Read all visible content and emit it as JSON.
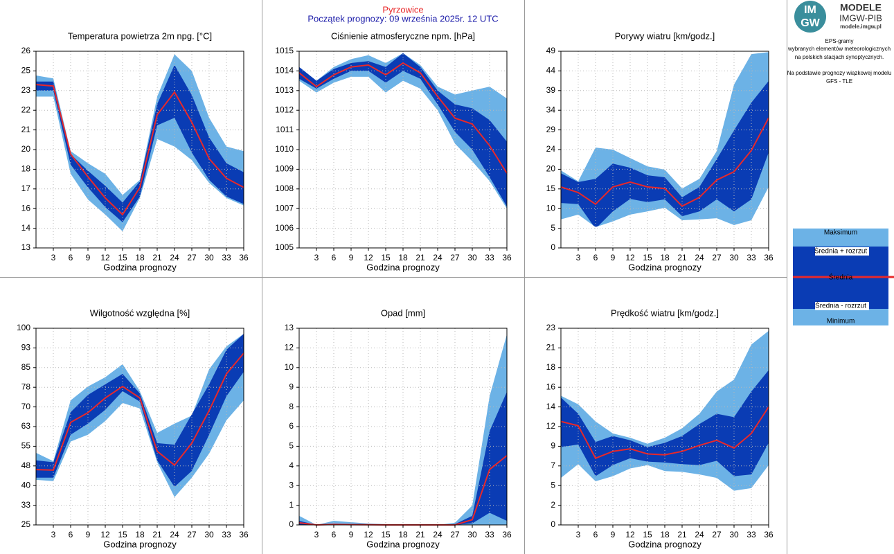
{
  "header": {
    "station": "Pyrzowice",
    "subtitle": "Początek prognozy: 09 września 2025r. 12 UTC"
  },
  "logo": {
    "mark": [
      "IM",
      "GW"
    ],
    "name": "MODELE",
    "org": "IMGW-PIB",
    "url": "modele.imgw.pl"
  },
  "info": [
    "EPS-gramy",
    "wybranych elementów meteorologicznych",
    "na polskich stacjach  synoptycznych.",
    "Na podstawie prognozy wiązkowej modelu",
    "GFS - TLE"
  ],
  "chart_data": [
    {
      "type": "band",
      "title": "Temperatura powietrza 2m npg. [°C]",
      "x_label": "Godzina prognozy",
      "x": [
        0,
        3,
        6,
        9,
        12,
        15,
        18,
        21,
        24,
        27,
        30,
        33,
        36
      ],
      "xlim": [
        0,
        36
      ],
      "xticks": [
        3,
        6,
        9,
        12,
        15,
        18,
        21,
        24,
        27,
        30,
        33,
        36
      ],
      "ylim": [
        13,
        26
      ],
      "yticks": [
        13,
        {
          "value": 14.3,
          "label": "14"
        },
        {
          "value": 15.6,
          "label": "16"
        },
        {
          "value": 16.9,
          "label": "17"
        },
        {
          "value": 18.2,
          "label": "18"
        },
        {
          "value": 19.5,
          "label": "20"
        },
        {
          "value": 20.8,
          "label": "21"
        },
        {
          "value": 22.1,
          "label": "22"
        },
        {
          "value": 23.4,
          "label": "23"
        },
        {
          "value": 24.7,
          "label": "25"
        },
        26
      ],
      "grid": true,
      "series": [
        {
          "name": "Maksimum",
          "color": "#6cb2e6",
          "values": [
            24.4,
            24.2,
            19.4,
            18.6,
            17.9,
            16.5,
            17.5,
            23.0,
            25.8,
            24.7,
            21.6,
            19.7,
            19.4
          ]
        },
        {
          "name": "Średnia + rozrzut",
          "color": "#0a3cb4",
          "values": [
            24.0,
            24.0,
            19.2,
            18.1,
            17.1,
            16.0,
            17.4,
            22.5,
            25.1,
            23.1,
            20.3,
            18.6,
            18.0
          ]
        },
        {
          "name": "Średnia",
          "color": "#e8282a",
          "values": [
            23.8,
            23.7,
            19.2,
            17.7,
            16.3,
            15.2,
            17.0,
            21.8,
            23.3,
            21.3,
            18.9,
            17.6,
            17.0
          ]
        },
        {
          "name": "Średnia - rozrzut",
          "color": "#0a3cb4",
          "values": [
            23.4,
            23.4,
            18.5,
            17.0,
            15.7,
            14.7,
            16.4,
            21.1,
            21.6,
            19.3,
            17.5,
            16.4,
            15.9
          ]
        },
        {
          "name": "Minimum",
          "color": "#6cb2e6",
          "values": [
            23.0,
            23.0,
            17.9,
            16.2,
            15.2,
            14.1,
            16.3,
            20.2,
            19.7,
            18.8,
            17.3,
            16.3,
            15.8
          ]
        }
      ]
    },
    {
      "type": "band",
      "title": "Ciśnienie atmosferyczne npm. [hPa]",
      "x_label": "Godzina prognozy",
      "x": [
        0,
        3,
        6,
        9,
        12,
        15,
        18,
        21,
        24,
        27,
        30,
        33,
        36
      ],
      "xlim": [
        0,
        36
      ],
      "xticks": [
        3,
        6,
        9,
        12,
        15,
        18,
        21,
        24,
        27,
        30,
        33,
        36
      ],
      "ylim": [
        1005,
        1015
      ],
      "yticks": [
        1005,
        1006,
        1007,
        1008,
        1009,
        1010,
        1011,
        1012,
        1013,
        1014,
        1015
      ],
      "grid": true,
      "series": [
        {
          "name": "Maksimum",
          "color": "#6cb2e6",
          "values": [
            1014.2,
            1013.5,
            1014.2,
            1014.6,
            1014.8,
            1014.4,
            1014.9,
            1014.3,
            1013.2,
            1012.8,
            1013.0,
            1013.2,
            1012.6
          ]
        },
        {
          "name": "Średnia + rozrzut",
          "color": "#0a3cb4",
          "values": [
            1014.2,
            1013.5,
            1014.1,
            1014.4,
            1014.5,
            1014.2,
            1014.9,
            1014.2,
            1013.0,
            1012.3,
            1012.1,
            1011.5,
            1010.4
          ]
        },
        {
          "name": "Średnia",
          "color": "#e8282a",
          "values": [
            1013.9,
            1013.2,
            1013.8,
            1014.2,
            1014.3,
            1013.8,
            1014.4,
            1013.9,
            1012.7,
            1011.6,
            1011.3,
            1010.2,
            1008.8
          ]
        },
        {
          "name": "Średnia - rozrzut",
          "color": "#0a3cb4",
          "values": [
            1013.6,
            1013.1,
            1013.6,
            1014.0,
            1014.0,
            1013.4,
            1014.0,
            1013.6,
            1012.3,
            1010.9,
            1010.0,
            1008.6,
            1007.1
          ]
        },
        {
          "name": "Minimum",
          "color": "#6cb2e6",
          "values": [
            1013.5,
            1012.9,
            1013.4,
            1013.7,
            1013.7,
            1012.9,
            1013.5,
            1013.1,
            1012.0,
            1010.3,
            1009.4,
            1008.4,
            1007.0
          ]
        }
      ]
    },
    {
      "type": "band",
      "title": "Porywy wiatru [km/godz.]",
      "x_label": "Godzina prognozy",
      "x": [
        0,
        3,
        6,
        9,
        12,
        15,
        18,
        21,
        24,
        27,
        30,
        33,
        36
      ],
      "xlim": [
        0,
        36
      ],
      "xticks": [
        3,
        6,
        9,
        12,
        15,
        18,
        21,
        24,
        27,
        30,
        33,
        36
      ],
      "ylim": [
        0,
        49
      ],
      "yticks": [
        0,
        {
          "value": 4.9,
          "label": "5"
        },
        {
          "value": 9.8,
          "label": "10"
        },
        {
          "value": 14.7,
          "label": "15"
        },
        {
          "value": 19.6,
          "label": "20"
        },
        {
          "value": 24.5,
          "label": "24"
        },
        {
          "value": 29.4,
          "label": "29"
        },
        {
          "value": 34.3,
          "label": "34"
        },
        {
          "value": 39.2,
          "label": "39"
        },
        {
          "value": 44.1,
          "label": "44"
        },
        49
      ],
      "grid": true,
      "series": [
        {
          "name": "Maksimum",
          "color": "#6cb2e6",
          "values": [
            19.3,
            16.6,
            25.0,
            24.5,
            22.4,
            20.3,
            19.5,
            14.8,
            17.2,
            24.1,
            40.7,
            48.3,
            48.8
          ]
        },
        {
          "name": "Średnia + rozrzut",
          "color": "#0a3cb4",
          "values": [
            18.6,
            16.4,
            17.2,
            21.0,
            20.0,
            18.1,
            17.6,
            12.6,
            15.2,
            22.1,
            29.3,
            36.2,
            41.6
          ]
        },
        {
          "name": "Średnia",
          "color": "#e8282a",
          "values": [
            15.2,
            13.8,
            10.9,
            15.2,
            16.4,
            15.2,
            14.8,
            10.4,
            12.6,
            16.9,
            19.0,
            24.3,
            32.4
          ]
        },
        {
          "name": "Średnia - rozrzut",
          "color": "#0a3cb4",
          "values": [
            11.2,
            10.9,
            4.8,
            9.1,
            12.2,
            11.4,
            12.1,
            7.9,
            9.1,
            12.1,
            9.1,
            12.1,
            23.8
          ]
        },
        {
          "name": "Minimum",
          "color": "#6cb2e6",
          "values": [
            7.1,
            8.3,
            5.2,
            6.6,
            8.3,
            9.1,
            10.0,
            6.9,
            7.1,
            7.4,
            5.7,
            6.9,
            15.2
          ]
        }
      ]
    },
    {
      "type": "band",
      "title": "Wilgotność względna [%]",
      "x_label": "Godzina prognozy",
      "x": [
        0,
        3,
        6,
        9,
        12,
        15,
        18,
        21,
        24,
        27,
        30,
        33,
        36
      ],
      "xlim": [
        0,
        36
      ],
      "xticks": [
        3,
        6,
        9,
        12,
        15,
        18,
        21,
        24,
        27,
        30,
        33,
        36
      ],
      "ylim": [
        25,
        100
      ],
      "yticks": [
        25,
        {
          "value": 32.5,
          "label": "33"
        },
        40,
        {
          "value": 47.5,
          "label": "48"
        },
        55,
        {
          "value": 62.5,
          "label": "63"
        },
        70,
        {
          "value": 77.5,
          "label": "78"
        },
        85,
        {
          "value": 92.5,
          "label": "93"
        },
        100
      ],
      "grid": true,
      "series": [
        {
          "name": "Maksimum",
          "color": "#6cb2e6",
          "values": [
            52.5,
            49.3,
            72.5,
            77.8,
            81.3,
            86.3,
            76.0,
            60.1,
            63.6,
            66.7,
            84.4,
            93.1,
            97.9
          ]
        },
        {
          "name": "Średnia + rozrzut",
          "color": "#0a3cb4",
          "values": [
            49.6,
            48.9,
            68.0,
            74.6,
            78.6,
            82.6,
            75.1,
            56.2,
            55.6,
            67.2,
            78.6,
            91.8,
            97.9
          ]
        },
        {
          "name": "Średnia",
          "color": "#e8282a",
          "values": [
            46.1,
            45.9,
            64.1,
            67.8,
            73.4,
            77.8,
            73.4,
            53.1,
            47.8,
            56.2,
            68.6,
            82.6,
            90.5
          ]
        },
        {
          "name": "Średnia - rozrzut",
          "color": "#0a3cb4",
          "values": [
            43.0,
            43.0,
            59.4,
            63.6,
            68.9,
            76.0,
            72.0,
            49.6,
            39.5,
            45.6,
            59.4,
            74.1,
            83.4
          ]
        },
        {
          "name": "Minimum",
          "color": "#6cb2e6",
          "values": [
            42.2,
            41.7,
            56.8,
            59.4,
            64.6,
            71.5,
            69.4,
            48.9,
            35.6,
            43.0,
            52.2,
            64.9,
            72.5
          ]
        }
      ]
    },
    {
      "type": "band",
      "title": "Opad [mm]",
      "x_label": "Godzina prognozy",
      "x": [
        0,
        3,
        6,
        9,
        12,
        15,
        18,
        21,
        24,
        27,
        30,
        33,
        36
      ],
      "xlim": [
        0,
        36
      ],
      "xticks": [
        3,
        6,
        9,
        12,
        15,
        18,
        21,
        24,
        27,
        30,
        33,
        36
      ],
      "ylim": [
        0,
        13
      ],
      "yticks": [
        0,
        {
          "value": 1.3,
          "label": "1"
        },
        {
          "value": 2.6,
          "label": "3"
        },
        {
          "value": 3.9,
          "label": "4"
        },
        {
          "value": 5.2,
          "label": "5"
        },
        {
          "value": 6.5,
          "label": "6"
        },
        {
          "value": 7.8,
          "label": "8"
        },
        {
          "value": 9.1,
          "label": "9"
        },
        {
          "value": 10.4,
          "label": "10"
        },
        {
          "value": 11.7,
          "label": "12"
        },
        13
      ],
      "grid": true,
      "series": [
        {
          "name": "Maksimum",
          "color": "#6cb2e6",
          "values": [
            0.6,
            0,
            0.27,
            0.18,
            0.09,
            0.05,
            0,
            0,
            0,
            0.14,
            1.28,
            8.5,
            12.6
          ]
        },
        {
          "name": "Średnia + rozrzut",
          "color": "#0a3cb4",
          "values": [
            0.27,
            0,
            0.05,
            0.03,
            0.02,
            0,
            0,
            0,
            0,
            0.05,
            0.6,
            6.2,
            8.8
          ]
        },
        {
          "name": "Średnia",
          "color": "#e8282a",
          "values": [
            0.14,
            0,
            0.03,
            0.02,
            0.01,
            0,
            0,
            0,
            0,
            0,
            0.35,
            3.66,
            4.58
          ]
        },
        {
          "name": "Średnia - rozrzut",
          "color": "#0a3cb4",
          "values": [
            0,
            0,
            0,
            0,
            0,
            0,
            0,
            0,
            0,
            0,
            0.1,
            0.8,
            0.27
          ]
        },
        {
          "name": "Minimum",
          "color": "#6cb2e6",
          "values": [
            0,
            0,
            0,
            0,
            0,
            0,
            0,
            0,
            0,
            0,
            0,
            0,
            0
          ]
        }
      ]
    },
    {
      "type": "band",
      "title": "Prędkość wiatru [km/godz.]",
      "x_label": "Godzina prognozy",
      "x": [
        0,
        3,
        6,
        9,
        12,
        15,
        18,
        21,
        24,
        27,
        30,
        33,
        36
      ],
      "xlim": [
        0,
        36
      ],
      "xticks": [
        3,
        6,
        9,
        12,
        15,
        18,
        21,
        24,
        27,
        30,
        33,
        36
      ],
      "ylim": [
        0,
        23
      ],
      "yticks": [
        0,
        {
          "value": 2.3,
          "label": "2"
        },
        {
          "value": 4.6,
          "label": "5"
        },
        {
          "value": 6.9,
          "label": "7"
        },
        {
          "value": 9.2,
          "label": "9"
        },
        {
          "value": 11.5,
          "label": "12"
        },
        {
          "value": 13.8,
          "label": "14"
        },
        {
          "value": 16.1,
          "label": "16"
        },
        {
          "value": 18.4,
          "label": "18"
        },
        {
          "value": 20.7,
          "label": "21"
        },
        23
      ],
      "grid": true,
      "series": [
        {
          "name": "Maksimum",
          "color": "#6cb2e6",
          "values": [
            15.1,
            14.1,
            12.1,
            10.7,
            10.2,
            9.5,
            10.2,
            11.3,
            13.0,
            15.6,
            17.0,
            21.1,
            22.7
          ]
        },
        {
          "name": "Średnia + rozrzut",
          "color": "#0a3cb4",
          "values": [
            14.9,
            13.0,
            9.7,
            10.4,
            9.9,
            9.1,
            9.6,
            10.4,
            11.8,
            13.0,
            12.6,
            15.6,
            18.1
          ]
        },
        {
          "name": "Średnia",
          "color": "#e8282a",
          "values": [
            12.1,
            11.6,
            7.8,
            8.6,
            8.9,
            8.3,
            8.2,
            8.6,
            9.3,
            9.9,
            9.0,
            10.7,
            13.8
          ]
        },
        {
          "name": "Średnia - rozrzut",
          "color": "#0a3cb4",
          "values": [
            9.1,
            9.4,
            5.7,
            7.0,
            7.8,
            7.4,
            7.3,
            7.1,
            7.0,
            7.5,
            5.7,
            5.9,
            9.6
          ]
        },
        {
          "name": "Minimum",
          "color": "#6cb2e6",
          "values": [
            5.5,
            7.1,
            5.1,
            5.7,
            6.6,
            7.0,
            6.3,
            6.2,
            5.9,
            5.5,
            4.0,
            4.3,
            7.0
          ]
        }
      ]
    }
  ]
}
